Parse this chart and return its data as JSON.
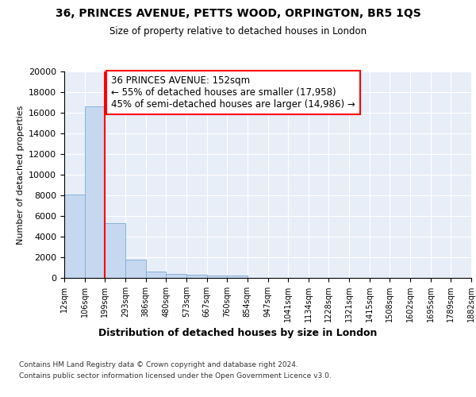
{
  "title": "36, PRINCES AVENUE, PETTS WOOD, ORPINGTON, BR5 1QS",
  "subtitle": "Size of property relative to detached houses in London",
  "xlabel": "Distribution of detached houses by size in London",
  "ylabel": "Number of detached properties",
  "bar_values": [
    8100,
    16600,
    5300,
    1750,
    650,
    350,
    280,
    220,
    200,
    0,
    0,
    0,
    0,
    0,
    0,
    0,
    0,
    0,
    0,
    0
  ],
  "bin_labels": [
    "12sqm",
    "106sqm",
    "199sqm",
    "293sqm",
    "386sqm",
    "480sqm",
    "573sqm",
    "667sqm",
    "760sqm",
    "854sqm",
    "947sqm",
    "1041sqm",
    "1134sqm",
    "1228sqm",
    "1321sqm",
    "1415sqm",
    "1508sqm",
    "1602sqm",
    "1695sqm",
    "1789sqm",
    "1882sqm"
  ],
  "bar_color": "#c5d8f0",
  "bar_edge_color": "#7aadd4",
  "annotation_text_line1": "36 PRINCES AVENUE: 152sqm",
  "annotation_text_line2": "← 55% of detached houses are smaller (17,958)",
  "annotation_text_line3": "45% of semi-detached houses are larger (14,986) →",
  "red_line_x": 2.0,
  "ylim": [
    0,
    20000
  ],
  "yticks": [
    0,
    2000,
    4000,
    6000,
    8000,
    10000,
    12000,
    14000,
    16000,
    18000,
    20000
  ],
  "bg_color": "#e8eef8",
  "footnote1": "Contains HM Land Registry data © Crown copyright and database right 2024.",
  "footnote2": "Contains public sector information licensed under the Open Government Licence v3.0.",
  "fig_bg_color": "#ffffff"
}
